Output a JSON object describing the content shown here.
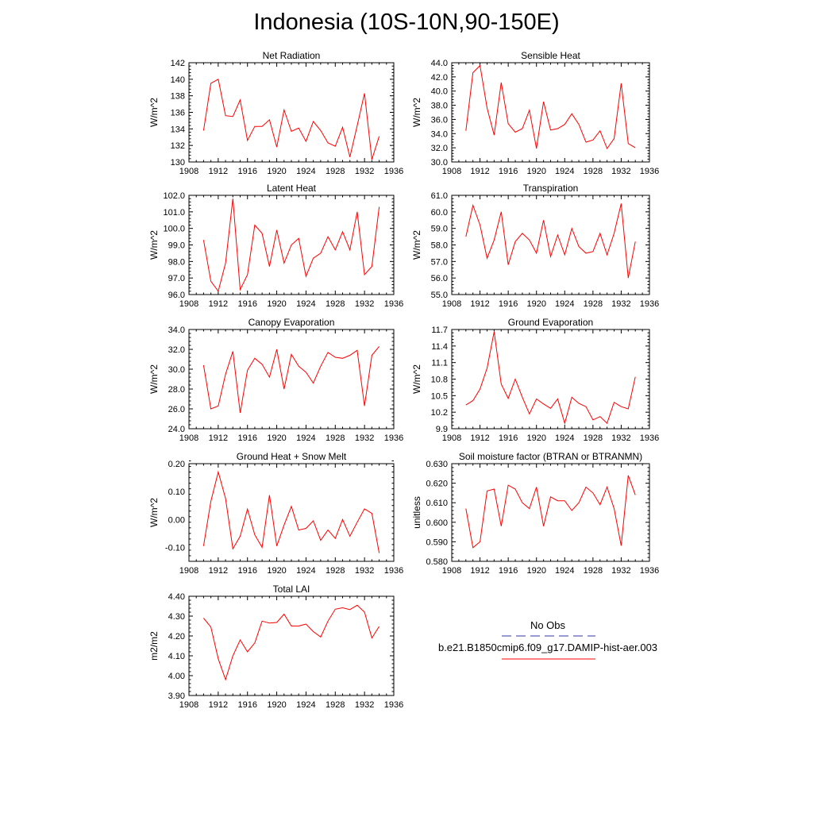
{
  "title": "Indonesia (10S-10N,90-150E)",
  "colors": {
    "model": "#ff0000",
    "obs": "#3333aa",
    "axis": "#000000"
  },
  "legend": {
    "obs_label": "No Obs",
    "model_label": "b.e21.B1850cmip6.f09_g17.DAMIP-hist-aer.003"
  },
  "chart_data": [
    {
      "type": "line",
      "title": "Net Radiation",
      "ylabel": "W/m^2",
      "xlim": [
        1908,
        1936
      ],
      "ylim": [
        130,
        142
      ],
      "xticks": [
        1908,
        1912,
        1916,
        1920,
        1924,
        1928,
        1932,
        1936
      ],
      "yticks": [
        130,
        132,
        134,
        136,
        138,
        140,
        142
      ],
      "ytick_labels": [
        "130",
        "132",
        "134",
        "136",
        "138",
        "140",
        "142"
      ],
      "x": [
        1910,
        1911,
        1912,
        1913,
        1914,
        1915,
        1916,
        1917,
        1918,
        1919,
        1920,
        1921,
        1922,
        1923,
        1924,
        1925,
        1926,
        1927,
        1928,
        1929,
        1930,
        1931,
        1932,
        1933,
        1934
      ],
      "series": [
        {
          "values": [
            133.8,
            139.5,
            140.0,
            135.6,
            135.5,
            137.5,
            132.6,
            134.3,
            134.3,
            135.1,
            131.8,
            136.3,
            133.7,
            134.1,
            132.5,
            134.9,
            133.8,
            132.3,
            131.9,
            134.2,
            130.6,
            134.4,
            138.3,
            130.3,
            133.1
          ]
        }
      ]
    },
    {
      "type": "line",
      "title": "Sensible Heat",
      "ylabel": "W/m^2",
      "xlim": [
        1908,
        1936
      ],
      "ylim": [
        30,
        44
      ],
      "xticks": [
        1908,
        1912,
        1916,
        1920,
        1924,
        1928,
        1932,
        1936
      ],
      "yticks": [
        30,
        32,
        34,
        36,
        38,
        40,
        42,
        44
      ],
      "ytick_labels": [
        "30.0",
        "32.0",
        "34.0",
        "36.0",
        "38.0",
        "40.0",
        "42.0",
        "44.0"
      ],
      "x": [
        1910,
        1911,
        1912,
        1913,
        1914,
        1915,
        1916,
        1917,
        1918,
        1919,
        1920,
        1921,
        1922,
        1923,
        1924,
        1925,
        1926,
        1927,
        1928,
        1929,
        1930,
        1931,
        1932,
        1933,
        1934
      ],
      "series": [
        {
          "values": [
            34.4,
            42.6,
            43.6,
            37.6,
            33.8,
            41.2,
            35.4,
            34.2,
            34.7,
            37.3,
            31.9,
            38.5,
            34.5,
            34.7,
            35.3,
            36.8,
            35.3,
            32.8,
            33.1,
            34.4,
            31.9,
            33.3,
            41.1,
            32.6,
            32.0
          ]
        }
      ]
    },
    {
      "type": "line",
      "title": "Latent Heat",
      "ylabel": "W/m^2",
      "xlim": [
        1908,
        1936
      ],
      "ylim": [
        96,
        102
      ],
      "xticks": [
        1908,
        1912,
        1916,
        1920,
        1924,
        1928,
        1932,
        1936
      ],
      "yticks": [
        96,
        97,
        98,
        99,
        100,
        101,
        102
      ],
      "ytick_labels": [
        "96.0",
        "97.0",
        "98.0",
        "99.0",
        "100.0",
        "101.0",
        "102.0"
      ],
      "x": [
        1910,
        1911,
        1912,
        1913,
        1914,
        1915,
        1916,
        1917,
        1918,
        1919,
        1920,
        1921,
        1922,
        1923,
        1924,
        1925,
        1926,
        1927,
        1928,
        1929,
        1930,
        1931,
        1932,
        1933,
        1934
      ],
      "series": [
        {
          "values": [
            99.3,
            96.8,
            96.2,
            97.9,
            101.8,
            96.3,
            97.2,
            100.2,
            99.7,
            97.7,
            99.9,
            97.9,
            99.0,
            99.4,
            97.1,
            98.2,
            98.5,
            99.5,
            98.7,
            99.8,
            98.7,
            101.0,
            97.2,
            97.7,
            101.3
          ]
        }
      ]
    },
    {
      "type": "line",
      "title": "Transpiration",
      "ylabel": "W/m^2",
      "xlim": [
        1908,
        1936
      ],
      "ylim": [
        55,
        61
      ],
      "xticks": [
        1908,
        1912,
        1916,
        1920,
        1924,
        1928,
        1932,
        1936
      ],
      "yticks": [
        55,
        56,
        57,
        58,
        59,
        60,
        61
      ],
      "ytick_labels": [
        "55.0",
        "56.0",
        "57.0",
        "58.0",
        "59.0",
        "60.0",
        "61.0"
      ],
      "x": [
        1910,
        1911,
        1912,
        1913,
        1914,
        1915,
        1916,
        1917,
        1918,
        1919,
        1920,
        1921,
        1922,
        1923,
        1924,
        1925,
        1926,
        1927,
        1928,
        1929,
        1930,
        1931,
        1932,
        1933,
        1934
      ],
      "series": [
        {
          "values": [
            58.5,
            60.4,
            59.2,
            57.2,
            58.3,
            60.0,
            56.8,
            58.2,
            58.7,
            58.3,
            57.5,
            59.5,
            57.3,
            58.6,
            57.4,
            59.0,
            57.9,
            57.5,
            57.6,
            58.7,
            57.4,
            58.7,
            60.5,
            56.0,
            58.2
          ]
        }
      ]
    },
    {
      "type": "line",
      "title": "Canopy Evaporation",
      "ylabel": "W/m^2",
      "xlim": [
        1908,
        1936
      ],
      "ylim": [
        24,
        34
      ],
      "xticks": [
        1908,
        1912,
        1916,
        1920,
        1924,
        1928,
        1932,
        1936
      ],
      "yticks": [
        24,
        26,
        28,
        30,
        32,
        34
      ],
      "ytick_labels": [
        "24.0",
        "26.0",
        "28.0",
        "30.0",
        "32.0",
        "34.0"
      ],
      "x": [
        1910,
        1911,
        1912,
        1913,
        1914,
        1915,
        1916,
        1917,
        1918,
        1919,
        1920,
        1921,
        1922,
        1923,
        1924,
        1925,
        1926,
        1927,
        1928,
        1929,
        1930,
        1931,
        1932,
        1933,
        1934
      ],
      "series": [
        {
          "values": [
            30.4,
            26.0,
            26.3,
            29.5,
            31.8,
            25.6,
            29.9,
            31.1,
            30.5,
            29.2,
            32.0,
            28.0,
            31.5,
            30.3,
            29.7,
            28.6,
            30.3,
            31.7,
            31.2,
            31.1,
            31.4,
            31.9,
            26.3,
            31.4,
            32.3
          ]
        }
      ]
    },
    {
      "type": "line",
      "title": "Ground Evaporation",
      "ylabel": "W/m^2",
      "xlim": [
        1908,
        1936
      ],
      "ylim": [
        9.9,
        11.7
      ],
      "xticks": [
        1908,
        1912,
        1916,
        1920,
        1924,
        1928,
        1932,
        1936
      ],
      "yticks": [
        9.9,
        10.2,
        10.5,
        10.8,
        11.1,
        11.4,
        11.7
      ],
      "ytick_labels": [
        "9.9",
        "10.2",
        "10.5",
        "10.8",
        "11.1",
        "11.4",
        "11.7"
      ],
      "x": [
        1910,
        1911,
        1912,
        1913,
        1914,
        1915,
        1916,
        1917,
        1918,
        1919,
        1920,
        1921,
        1922,
        1923,
        1924,
        1925,
        1926,
        1927,
        1928,
        1929,
        1930,
        1931,
        1932,
        1933,
        1934
      ],
      "series": [
        {
          "values": [
            10.33,
            10.41,
            10.62,
            11.0,
            11.66,
            10.71,
            10.45,
            10.8,
            10.47,
            10.17,
            10.44,
            10.35,
            10.27,
            10.44,
            10.0,
            10.47,
            10.36,
            10.3,
            10.06,
            10.12,
            10.0,
            10.38,
            10.3,
            10.26,
            10.84
          ]
        }
      ]
    },
    {
      "type": "line",
      "title": "Ground Heat + Snow Melt",
      "ylabel": "W/m^2",
      "xlim": [
        1908,
        1936
      ],
      "ylim": [
        -0.15,
        0.2
      ],
      "xticks": [
        1908,
        1912,
        1916,
        1920,
        1924,
        1928,
        1932,
        1936
      ],
      "yticks": [
        -0.1,
        0.0,
        0.1,
        0.2
      ],
      "ytick_labels": [
        "-0.10",
        "0.00",
        "0.10",
        "0.20"
      ],
      "x": [
        1910,
        1911,
        1912,
        1913,
        1914,
        1915,
        1916,
        1917,
        1918,
        1919,
        1920,
        1921,
        1922,
        1923,
        1924,
        1925,
        1926,
        1927,
        1928,
        1929,
        1930,
        1931,
        1932,
        1933,
        1934
      ],
      "series": [
        {
          "values": [
            -0.095,
            0.065,
            0.17,
            0.075,
            -0.105,
            -0.06,
            0.037,
            -0.055,
            -0.1,
            0.087,
            -0.095,
            -0.02,
            0.047,
            -0.038,
            -0.032,
            -0.005,
            -0.075,
            -0.038,
            -0.068,
            0.0,
            -0.06,
            -0.01,
            0.038,
            0.022,
            -0.12
          ]
        }
      ]
    },
    {
      "type": "line",
      "title": "Soil moisture factor (BTRAN or BTRANMN)",
      "ylabel": "unitless",
      "xlim": [
        1908,
        1936
      ],
      "ylim": [
        0.58,
        0.63
      ],
      "xticks": [
        1908,
        1912,
        1916,
        1920,
        1924,
        1928,
        1932,
        1936
      ],
      "yticks": [
        0.58,
        0.59,
        0.6,
        0.61,
        0.62,
        0.63
      ],
      "ytick_labels": [
        "0.580",
        "0.590",
        "0.600",
        "0.610",
        "0.620",
        "0.630"
      ],
      "x": [
        1910,
        1911,
        1912,
        1913,
        1914,
        1915,
        1916,
        1917,
        1918,
        1919,
        1920,
        1921,
        1922,
        1923,
        1924,
        1925,
        1926,
        1927,
        1928,
        1929,
        1930,
        1931,
        1932,
        1933,
        1934
      ],
      "series": [
        {
          "values": [
            0.607,
            0.587,
            0.59,
            0.616,
            0.617,
            0.598,
            0.619,
            0.617,
            0.61,
            0.607,
            0.618,
            0.598,
            0.613,
            0.611,
            0.611,
            0.606,
            0.61,
            0.618,
            0.615,
            0.609,
            0.618,
            0.607,
            0.588,
            0.624,
            0.614
          ]
        }
      ]
    },
    {
      "type": "line",
      "title": "Total LAI",
      "ylabel": "m2/m2",
      "xlim": [
        1908,
        1936
      ],
      "ylim": [
        3.9,
        4.4
      ],
      "xticks": [
        1908,
        1912,
        1916,
        1920,
        1924,
        1928,
        1932,
        1936
      ],
      "yticks": [
        3.9,
        4.0,
        4.1,
        4.2,
        4.3,
        4.4
      ],
      "ytick_labels": [
        "3.90",
        "4.00",
        "4.10",
        "4.20",
        "4.30",
        "4.40"
      ],
      "x": [
        1910,
        1911,
        1912,
        1913,
        1914,
        1915,
        1916,
        1917,
        1918,
        1919,
        1920,
        1921,
        1922,
        1923,
        1924,
        1925,
        1926,
        1927,
        1928,
        1929,
        1930,
        1931,
        1932,
        1933,
        1934
      ],
      "series": [
        {
          "values": [
            4.29,
            4.245,
            4.085,
            3.98,
            4.1,
            4.18,
            4.12,
            4.165,
            4.275,
            4.265,
            4.268,
            4.31,
            4.25,
            4.25,
            4.26,
            4.222,
            4.195,
            4.275,
            4.335,
            4.342,
            4.333,
            4.355,
            4.32,
            4.19,
            4.248
          ]
        }
      ]
    }
  ]
}
